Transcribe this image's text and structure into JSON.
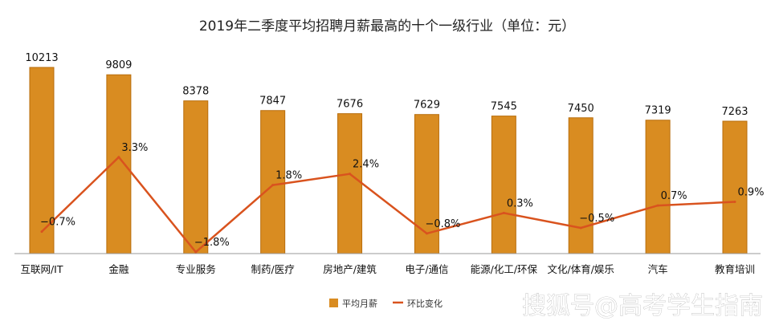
{
  "chart_data": {
    "type": "bar",
    "title": "2019年二季度平均招聘月薪最高的十个一级行业（单位：元）",
    "categories": [
      "互联网/IT",
      "金融",
      "专业服务",
      "制药/医疗",
      "房地产/建筑",
      "电子/通信",
      "能源/化工/环保",
      "文化/体育/娱乐",
      "汽车",
      "教育培训"
    ],
    "series": [
      {
        "name": "平均月薪",
        "type": "bar",
        "values": [
          10213,
          9809,
          8378,
          7847,
          7676,
          7629,
          7545,
          7450,
          7319,
          7263
        ],
        "labels": [
          "10213",
          "9809",
          "8378",
          "7847",
          "7676",
          "7629",
          "7545",
          "7450",
          "7319",
          "7263"
        ]
      },
      {
        "name": "环比变化",
        "type": "line",
        "values": [
          -0.7,
          3.3,
          -1.8,
          1.8,
          2.4,
          -0.8,
          0.3,
          -0.5,
          0.7,
          0.9
        ],
        "labels": [
          "−0.7%",
          "3.3%",
          "−1.8%",
          "1.8%",
          "2.4%",
          "−0.8%",
          "0.3%",
          "−0.5%",
          "0.7%",
          "0.9%"
        ]
      }
    ],
    "colors": {
      "bar": "#d98c21",
      "bar_edge": "#b86d0c",
      "line": "#d9531e"
    },
    "legend_position": "bottom",
    "grid": false
  },
  "watermark": "搜狐号@高考学生指南"
}
